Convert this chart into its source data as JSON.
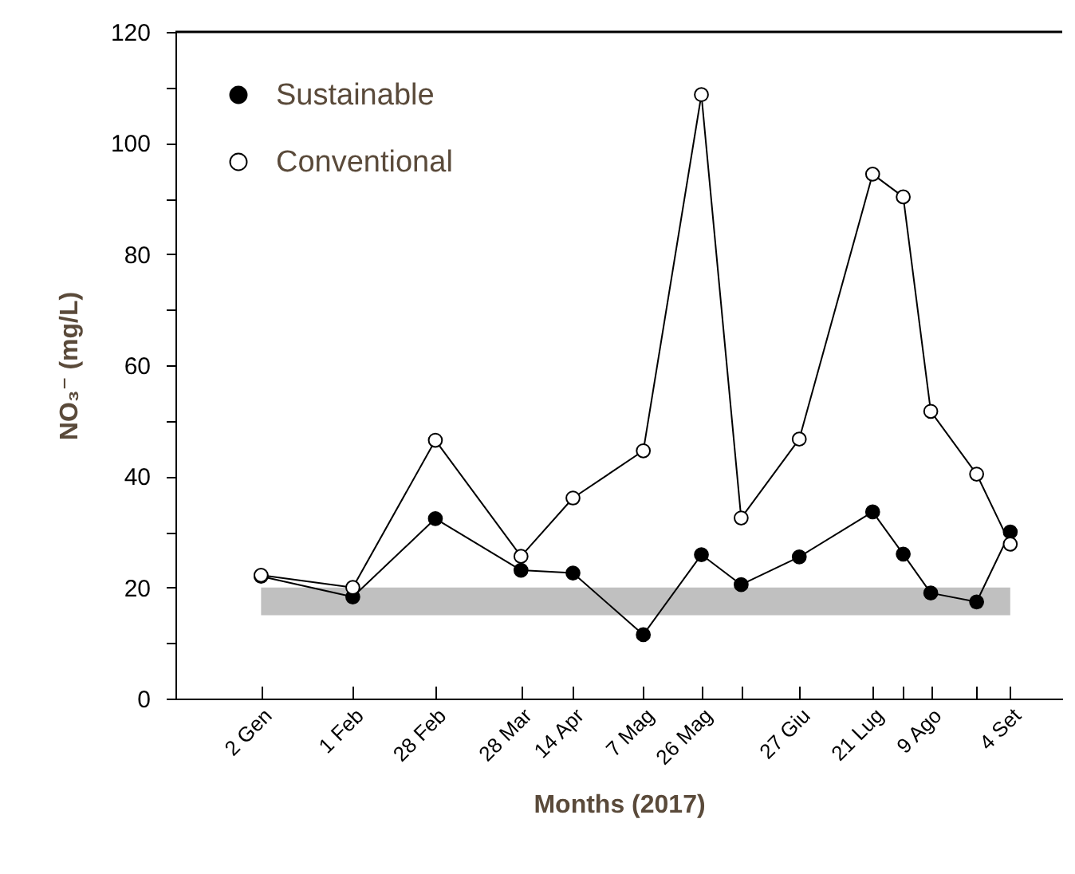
{
  "chart_data": {
    "type": "line",
    "xlabel": "Months (2017)",
    "ylabel": "NO₃⁻ (mg/L)",
    "xlim": [
      "2016-12-05",
      "2017-09-21"
    ],
    "xticks": [
      {
        "value": "2017-01-02",
        "label": "2 Gen"
      },
      {
        "value": "2017-02-01",
        "label": "1 Feb"
      },
      {
        "value": "2017-02-28",
        "label": "28 Feb"
      },
      {
        "value": "2017-03-28",
        "label": "28 Mar"
      },
      {
        "value": "2017-04-14",
        "label": "14 Apr"
      },
      {
        "value": "2017-05-07",
        "label": "7 Mag"
      },
      {
        "value": "2017-05-26",
        "label": "26 Mag"
      },
      {
        "value": "2017-06-08",
        "label": null
      },
      {
        "value": "2017-06-27",
        "label": "27 Giu"
      },
      {
        "value": "2017-07-21",
        "label": "21 Lug"
      },
      {
        "value": "2017-07-31",
        "label": null
      },
      {
        "value": "2017-08-09",
        "label": "9 Ago"
      },
      {
        "value": "2017-08-24",
        "label": null
      },
      {
        "value": "2017-09-04",
        "label": "4 Set"
      }
    ],
    "ylim": [
      0,
      120
    ],
    "yticks": [
      0,
      {
        "value": 10,
        "label": null
      },
      20,
      {
        "value": 30,
        "label": null
      },
      40,
      {
        "value": 50,
        "label": null
      },
      60,
      {
        "value": 70,
        "label": null
      },
      80,
      {
        "value": 90,
        "label": null
      },
      100,
      {
        "value": 110,
        "label": null
      },
      120
    ],
    "x": [
      "2017-01-02",
      "2017-02-01",
      "2017-02-28",
      "2017-03-28",
      "2017-04-14",
      "2017-05-07",
      "2017-05-26",
      "2017-06-08",
      "2017-06-27",
      "2017-07-21",
      "2017-07-31",
      "2017-08-09",
      "2017-08-24",
      "2017-09-04"
    ],
    "series": [
      {
        "name": "Sustainable",
        "color": "#000000",
        "values": [
          22,
          18.3,
          32.4,
          23.1,
          22.6,
          11.5,
          25.9,
          20.5,
          25.5,
          33.6,
          26,
          19,
          17.4,
          30
        ]
      },
      {
        "name": "Conventional",
        "color": "#ffffff",
        "values": [
          22.2,
          20,
          46.5,
          25.6,
          36.1,
          44.6,
          108.7,
          32.5,
          46.7,
          94.4,
          90.3,
          51.7,
          40.4,
          27.8
        ]
      }
    ],
    "bands": [
      {
        "axis": "y",
        "from": 15,
        "to": 20,
        "color": "#c0c0c0"
      }
    ],
    "legend": "top left",
    "grid": false,
    "marker": "circle",
    "line_style": "solid"
  }
}
